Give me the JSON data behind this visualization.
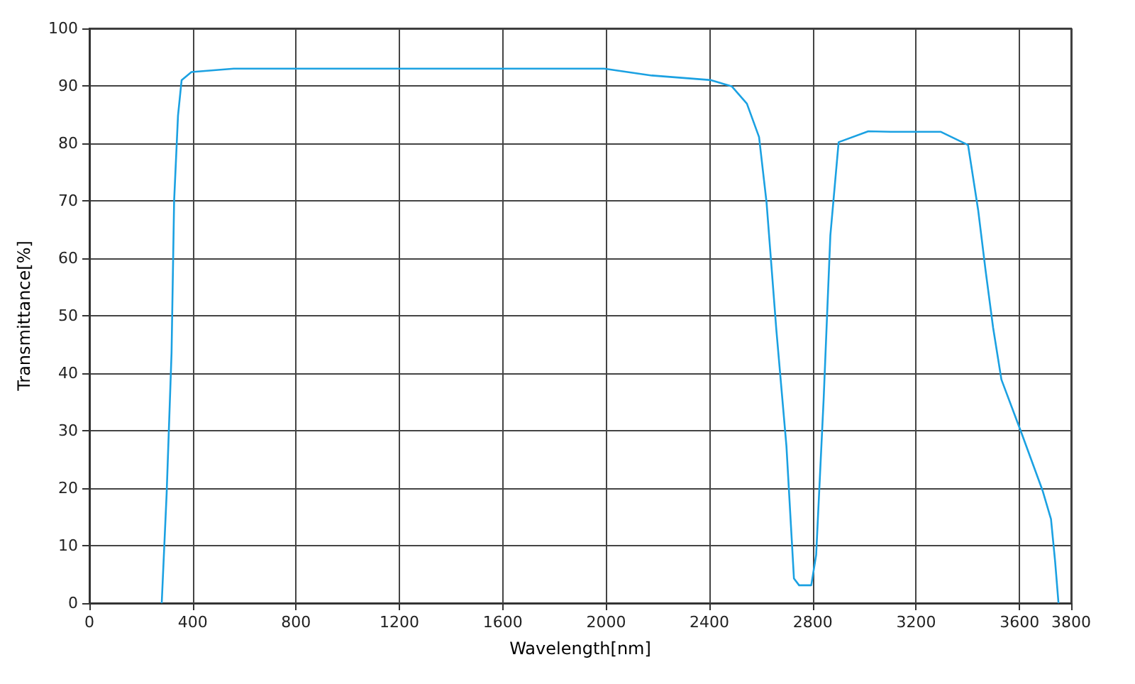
{
  "chart_data": {
    "type": "line",
    "xlabel": "Wavelength[nm]",
    "ylabel": "Transmittance[%]",
    "x": [
      280,
      299,
      318,
      328,
      343,
      357,
      395,
      559,
      1137,
      1600,
      1993,
      2177,
      2406,
      2487,
      2545,
      2592,
      2621,
      2659,
      2698,
      2727,
      2747,
      2794,
      2813,
      2842,
      2868,
      2900,
      3015,
      3102,
      3218,
      3296,
      3401,
      3440,
      3469,
      3498,
      3530,
      3607,
      3690,
      3722,
      3738,
      3751
    ],
    "series": [
      {
        "color": "#1ba1e2",
        "values": [
          0,
          19,
          43.5,
          70,
          84.8,
          91,
          92.4,
          93,
          93,
          93,
          93,
          91.8,
          91,
          89.9,
          86.9,
          81.1,
          69.7,
          47.5,
          27.3,
          4.3,
          3.1,
          3.1,
          8.4,
          35.5,
          64,
          80.2,
          82.1,
          82,
          82,
          82,
          79.7,
          68.4,
          57.8,
          47.9,
          38.9,
          29.7,
          19.5,
          14.6,
          7.2,
          0
        ]
      }
    ],
    "xlim": [
      0,
      3800
    ],
    "xticks": [
      0,
      400,
      800,
      1200,
      1600,
      2000,
      2400,
      2800,
      3200,
      3600,
      3800
    ],
    "ylim": [
      0,
      100
    ],
    "yticks": [
      0,
      10,
      20,
      30,
      40,
      50,
      60,
      70,
      80,
      90,
      100
    ],
    "grid": true,
    "marker": "none",
    "line_style": "solid"
  }
}
